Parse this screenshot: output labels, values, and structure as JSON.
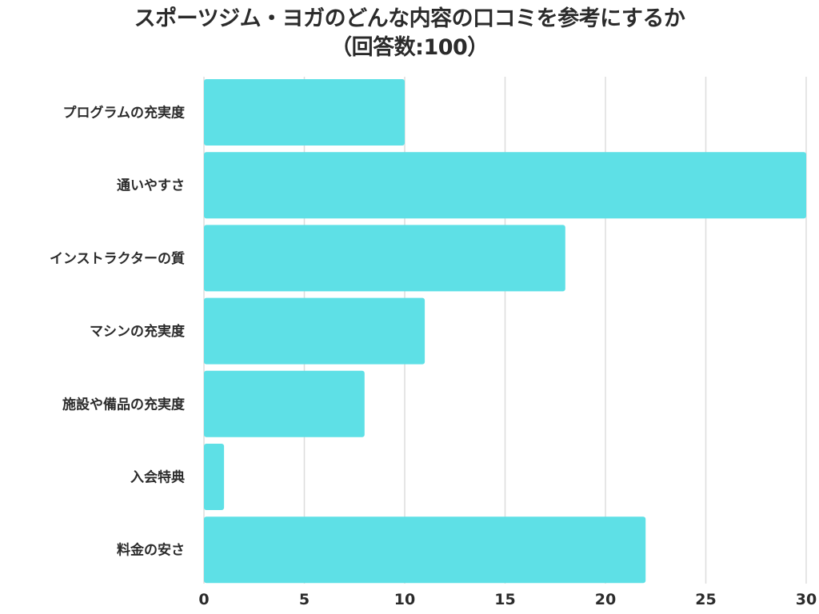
{
  "chart_data": {
    "type": "bar",
    "orientation": "horizontal",
    "title": "スポーツジム・ヨガのどんな内容の口コミを参考にするか",
    "subtitle": "（回答数:100）",
    "categories": [
      "プログラムの充実度",
      "通いやすさ",
      "インストラクターの質",
      "マシンの充実度",
      "施設や備品の充実度",
      "入会特典",
      "料金の安さ"
    ],
    "values": [
      10,
      30,
      18,
      11,
      8,
      1,
      22
    ],
    "xlim": [
      0,
      30
    ],
    "xticks": [
      "0",
      "5",
      "10",
      "15",
      "20",
      "25",
      "30"
    ],
    "grid": "vertical",
    "bar_color": "#5ee0e6",
    "grid_color": "#dddddd"
  }
}
